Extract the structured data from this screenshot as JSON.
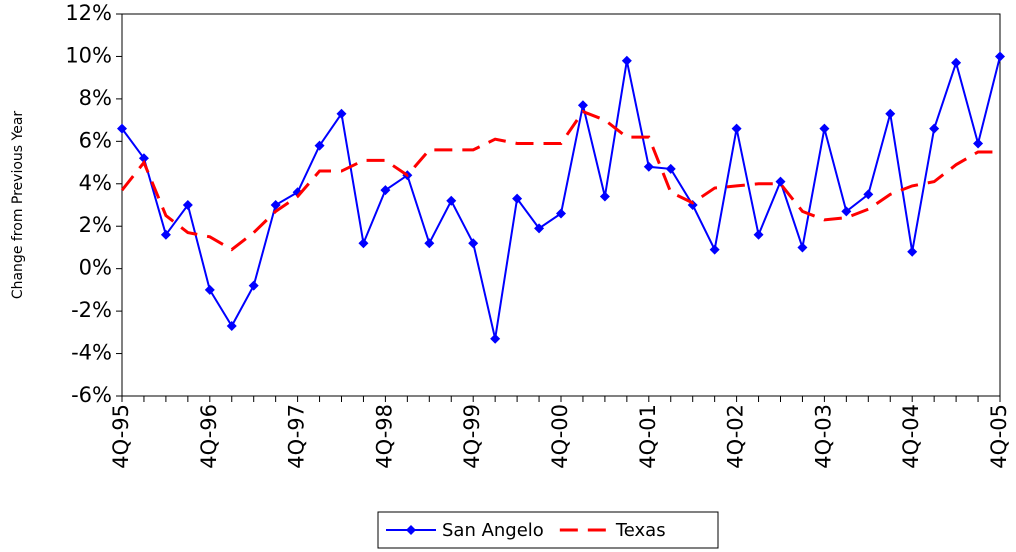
{
  "chart_data": {
    "type": "line",
    "axis_label_y": "Change from Previous Year",
    "categories": [
      "4Q-95",
      null,
      null,
      null,
      "4Q-96",
      null,
      null,
      null,
      "4Q-97",
      null,
      null,
      null,
      "4Q-98",
      null,
      null,
      null,
      "4Q-99",
      null,
      null,
      null,
      "4Q-00",
      null,
      null,
      null,
      "4Q-01",
      null,
      null,
      null,
      "4Q-02",
      null,
      null,
      null,
      "4Q-03",
      null,
      null,
      null,
      "4Q-04",
      null,
      null,
      null,
      "4Q-05"
    ],
    "series": [
      {
        "name": "San Angelo",
        "color": "#0000ff",
        "dash": false,
        "marker": "diamond",
        "values": [
          6.6,
          5.2,
          1.6,
          3.0,
          -1.0,
          -2.7,
          -0.8,
          3.0,
          3.6,
          5.8,
          7.3,
          1.2,
          3.7,
          4.4,
          1.2,
          3.2,
          1.2,
          -3.3,
          3.3,
          1.9,
          2.6,
          7.7,
          3.4,
          9.8,
          4.8,
          4.7,
          3.0,
          0.9,
          6.6,
          1.6,
          4.1,
          1.0,
          6.6,
          2.7,
          3.5,
          7.3,
          0.8,
          6.6,
          9.7,
          5.9,
          10.0
        ]
      },
      {
        "name": "Texas",
        "color": "#ff0000",
        "dash": true,
        "marker": null,
        "values": [
          3.7,
          5.0,
          2.5,
          1.7,
          1.5,
          0.9,
          1.7,
          2.7,
          3.4,
          4.6,
          4.6,
          5.1,
          5.1,
          4.4,
          5.6,
          5.6,
          5.6,
          6.1,
          5.9,
          5.9,
          5.9,
          7.4,
          7.0,
          6.2,
          6.2,
          3.6,
          3.1,
          3.8,
          3.9,
          4.0,
          4.0,
          2.7,
          2.3,
          2.4,
          2.8,
          3.5,
          3.9,
          4.1,
          4.9,
          5.5,
          5.5
        ]
      }
    ],
    "ylim": [
      -6,
      12
    ],
    "yticks": [
      {
        "value": -6,
        "label": "-6%"
      },
      {
        "value": -4,
        "label": "-4%"
      },
      {
        "value": -2,
        "label": "-2%"
      },
      {
        "value": 0,
        "label": "0%"
      },
      {
        "value": 2,
        "label": "2%"
      },
      {
        "value": 4,
        "label": "4%"
      },
      {
        "value": 6,
        "label": "6%"
      },
      {
        "value": 8,
        "label": "8%"
      },
      {
        "value": 10,
        "label": "10%"
      },
      {
        "value": 12,
        "label": "12%"
      }
    ],
    "grid": false,
    "legend": "bottom"
  }
}
